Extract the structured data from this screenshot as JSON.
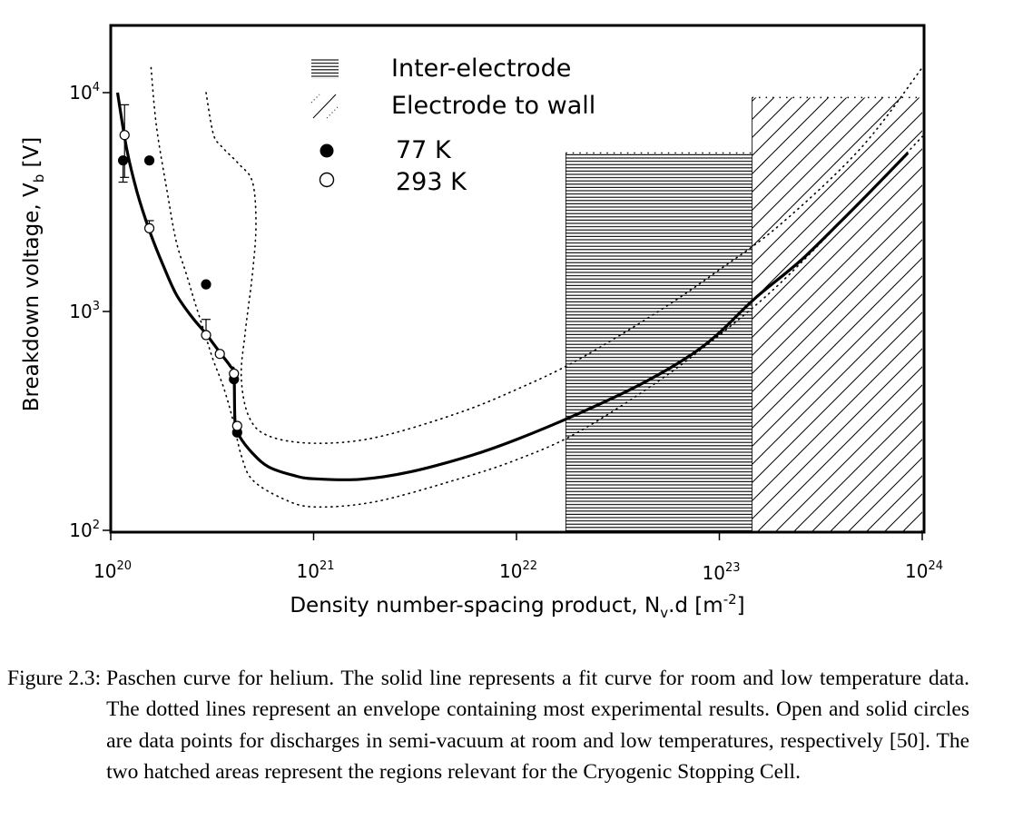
{
  "chart_data": {
    "type": "scatter",
    "xlabel": "Density number-spacing product, N",
    "xlabel_sub": "v",
    "xlabel_tail": ".d [m",
    "xlabel_sup": "-2",
    "xlabel_end": "]",
    "ylabel": "Breakdown voltage, V",
    "ylabel_sub": "b",
    "ylabel_tail": " [V]",
    "x_scale": "log",
    "y_scale": "log",
    "xlim": [
      1e+20,
      1e+24
    ],
    "ylim": [
      100,
      20000
    ],
    "grid": false,
    "legend_position": "top-center",
    "x_ticks": [
      {
        "value": 1e+20,
        "base": "10",
        "exp": "20"
      },
      {
        "value": 1e+21,
        "base": "10",
        "exp": "21"
      },
      {
        "value": 1e+22,
        "base": "10",
        "exp": "22"
      },
      {
        "value": 1e+23,
        "base": "10",
        "exp": "23"
      },
      {
        "value": 1e+24,
        "base": "10",
        "exp": "24"
      }
    ],
    "y_ticks": [
      {
        "value": 100,
        "base": "10",
        "exp": "2"
      },
      {
        "value": 1000,
        "base": "10",
        "exp": "3"
      },
      {
        "value": 10000,
        "base": "10",
        "exp": "4"
      }
    ],
    "legend": [
      {
        "label": "Inter-electrode",
        "symbol": "horizontal-hatch"
      },
      {
        "label": "Electrode to wall",
        "symbol": "diagonal-hatch"
      },
      {
        "label": "77 K",
        "symbol": "filled-circle"
      },
      {
        "label": "293 K",
        "symbol": "open-circle"
      }
    ],
    "regions": [
      {
        "name": "Inter-electrode",
        "x": [
          1.75e+22,
          1.45e+23
        ],
        "y": [
          100,
          5300
        ],
        "pattern": "horizontal"
      },
      {
        "name": "Electrode to wall",
        "x": [
          1.45e+23,
          1e+24
        ],
        "y": [
          100,
          9500
        ],
        "pattern": "diagonal"
      }
    ],
    "series": [
      {
        "name": "77 K",
        "marker": "filled",
        "points": [
          {
            "x": 1.15e+20,
            "y": 4900,
            "err_low": 3900,
            "err_high": 4900
          },
          {
            "x": 1.55e+20,
            "y": 4900
          },
          {
            "x": 2.95e+20,
            "y": 1330
          },
          {
            "x": 4.05e+20,
            "y": 490
          },
          {
            "x": 4.2e+20,
            "y": 280
          }
        ]
      },
      {
        "name": "293 K",
        "marker": "open",
        "points": [
          {
            "x": 1.17e+20,
            "y": 6400,
            "err_low": 4100,
            "err_high": 8800
          },
          {
            "x": 1.55e+20,
            "y": 2400,
            "err_low": 2400,
            "err_high": 2600
          },
          {
            "x": 2.95e+20,
            "y": 780,
            "err_low": 780,
            "err_high": 920
          },
          {
            "x": 3.45e+20,
            "y": 640
          },
          {
            "x": 4.05e+20,
            "y": 520
          },
          {
            "x": 4.2e+20,
            "y": 300
          }
        ]
      }
    ],
    "fit_curve": [
      [
        1.08e+20,
        10000
      ],
      [
        1.2e+20,
        5500
      ],
      [
        1.35e+20,
        3500
      ],
      [
        1.55e+20,
        2350
      ],
      [
        1.8e+20,
        1650
      ],
      [
        2.1e+20,
        1200
      ],
      [
        2.5e+20,
        950
      ],
      [
        2.95e+20,
        790
      ],
      [
        3.45e+20,
        650
      ],
      [
        3.9e+20,
        560
      ],
      [
        4.05e+20,
        520
      ],
      [
        4.1e+20,
        310
      ],
      [
        4.3e+20,
        270
      ],
      [
        5e+20,
        225
      ],
      [
        6e+20,
        195
      ],
      [
        8e+20,
        178
      ],
      [
        1e+21,
        172
      ],
      [
        1.7e+21,
        171
      ],
      [
        3e+21,
        185
      ],
      [
        6e+21,
        220
      ],
      [
        1e+22,
        260
      ],
      [
        2e+22,
        340
      ],
      [
        4e+22,
        460
      ],
      [
        7e+22,
        620
      ],
      [
        1e+23,
        800
      ],
      [
        1.5e+23,
        1150
      ],
      [
        2.5e+23,
        1700
      ],
      [
        4e+23,
        2600
      ],
      [
        6e+23,
        3800
      ],
      [
        8.5e+23,
        5300
      ]
    ],
    "envelope_curves": [
      [
        [
          1.58e+20,
          13000
        ],
        [
          1.68e+20,
          7000
        ],
        [
          1.9e+20,
          3500
        ],
        [
          2.1e+20,
          2100
        ],
        [
          2.35e+20,
          1500
        ],
        [
          2.6e+20,
          1100
        ],
        [
          2.9e+20,
          800
        ],
        [
          3.2e+20,
          600
        ],
        [
          3.6e+20,
          450
        ],
        [
          4e+20,
          320
        ],
        [
          4.4e+20,
          220
        ],
        [
          5e+20,
          170
        ],
        [
          7e+20,
          140
        ],
        [
          1e+21,
          128
        ],
        [
          2e+21,
          135
        ],
        [
          5e+21,
          170
        ],
        [
          1e+22,
          210
        ],
        [
          2e+22,
          280
        ],
        [
          5e+22,
          480
        ],
        [
          1e+23,
          780
        ],
        [
          2e+23,
          1350
        ],
        [
          5e+23,
          3200
        ],
        [
          1e+24,
          6300
        ]
      ],
      [
        [
          2.95e+20,
          10000
        ],
        [
          3.2e+20,
          6500
        ],
        [
          3.5e+20,
          5700
        ],
        [
          4.3e+20,
          4700
        ],
        [
          5e+20,
          3900
        ],
        [
          5.2e+20,
          2500
        ],
        [
          5e+20,
          1500
        ],
        [
          4.6e+20,
          800
        ],
        [
          4.4e+20,
          500
        ],
        [
          4.8e+20,
          330
        ],
        [
          6e+20,
          270
        ],
        [
          1e+21,
          250
        ],
        [
          2e+21,
          265
        ],
        [
          5e+21,
          340
        ],
        [
          1e+22,
          440
        ],
        [
          2e+22,
          600
        ],
        [
          5e+22,
          1000
        ],
        [
          1e+23,
          1550
        ],
        [
          2e+23,
          2500
        ],
        [
          5e+23,
          5600
        ],
        [
          1e+24,
          13000
        ]
      ]
    ]
  },
  "caption": {
    "label": "Figure 2.3:",
    "text": "Paschen curve for helium. The solid line represents a fit curve for room and low temperature data. The dotted lines represent an envelope containing most experimental results. Open and solid circles are data points for discharges in semi-vacuum at room and low temperatures, respectively [50]. The two hatched areas represent the regions relevant for the Cryogenic Stopping Cell."
  }
}
